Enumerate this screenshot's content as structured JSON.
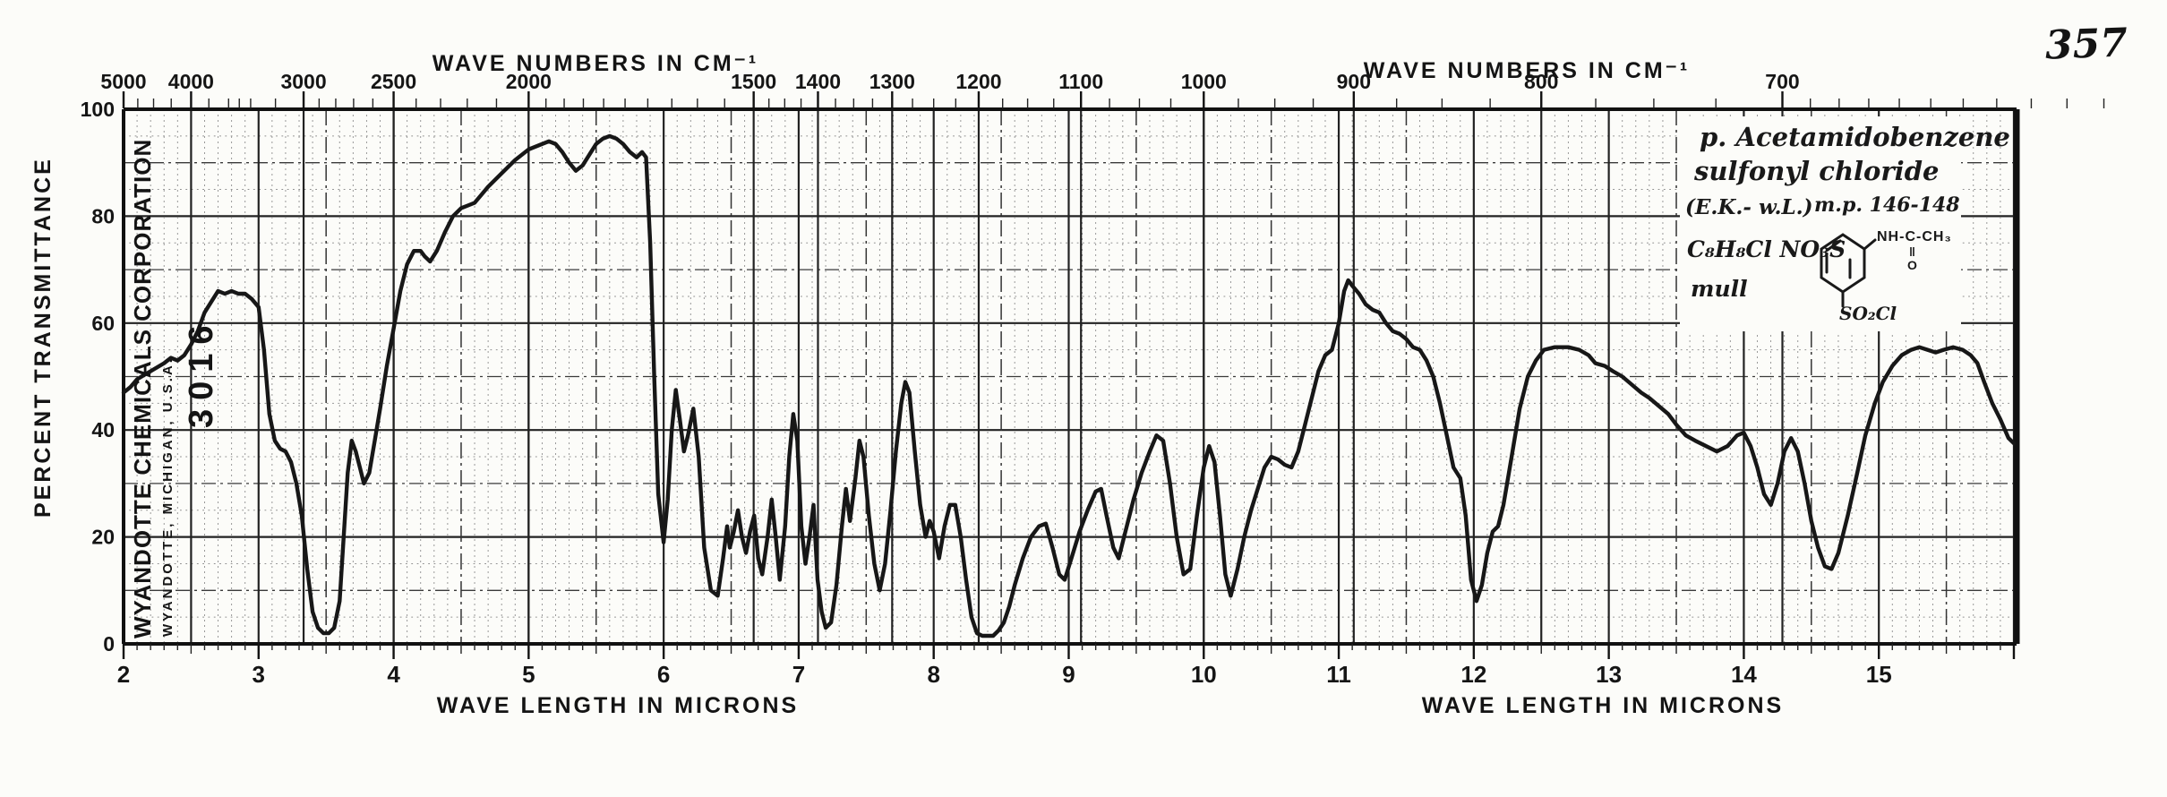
{
  "page": {
    "number": "357"
  },
  "top_axis": {
    "title_left": "WAVE NUMBERS IN CM⁻¹",
    "title_right": "WAVE NUMBERS IN CM⁻¹"
  },
  "bottom_axis": {
    "title_left": "WAVE LENGTH IN MICRONS",
    "title_right": "WAVE LENGTH IN MICRONS"
  },
  "left_axis": {
    "title": "PERCENT TRANSMITTANCE"
  },
  "stamps": {
    "company": "WYANDOTTE CHEMICALS CORPORATION",
    "city": "WYANDOTTE, MICHIGAN, U.S.A.",
    "number": "3016"
  },
  "annotation": {
    "line1": "p. Acetamidobenzene",
    "line2": "sulfonyl chloride",
    "source": "(E.K.- w.L.)",
    "melting_point": "m.p. 146-148",
    "formula": "C₈H₈Cl NO₃S",
    "preparation": "mull",
    "structure": {
      "amide": "NH-C-CH₃",
      "double_bond": "‖",
      "oxygen": "O",
      "sulfonyl": "SO₂Cl"
    }
  },
  "chart_data": {
    "type": "line",
    "xlabel": "WAVE LENGTH IN MICRONS",
    "x2label": "WAVE NUMBERS IN CM⁻¹",
    "ylabel": "PERCENT TRANSMITTANCE",
    "xlim": [
      2,
      16.02
    ],
    "ylim": [
      0,
      100
    ],
    "grid": true,
    "x_ticks_microns": [
      2,
      3,
      4,
      5,
      6,
      7,
      8,
      9,
      10,
      11,
      12,
      13,
      14,
      15
    ],
    "y_ticks": [
      100,
      80,
      60,
      40,
      20,
      0
    ],
    "wavenumber_ticks_labeled": [
      5000,
      4000,
      3000,
      2500,
      2000,
      1500,
      1400,
      1300,
      1200,
      1100,
      1000,
      900,
      800,
      700
    ],
    "wavenumber_ticks_minor": [
      4750,
      4500,
      4250,
      3800,
      3600,
      3500,
      3400,
      3200,
      2900,
      2800,
      2700,
      2600,
      2400,
      2300,
      2200,
      2100,
      1950,
      1900,
      1850,
      1800,
      1750,
      1700,
      1650,
      1600,
      1550,
      1475,
      1450,
      1425,
      1375,
      1350,
      1325,
      1275,
      1250,
      1225,
      1175,
      1150,
      1125,
      1075,
      1050,
      1025,
      975,
      950,
      925,
      875,
      850,
      825,
      775,
      750,
      725,
      690,
      680,
      670,
      660,
      650,
      640,
      630,
      620,
      610,
      600
    ],
    "series": [
      {
        "name": "percent transmittance",
        "points": [
          [
            2.0,
            47
          ],
          [
            2.05,
            48
          ],
          [
            2.1,
            49.5
          ],
          [
            2.2,
            51
          ],
          [
            2.3,
            52.5
          ],
          [
            2.35,
            53.5
          ],
          [
            2.4,
            53
          ],
          [
            2.45,
            54
          ],
          [
            2.5,
            56
          ],
          [
            2.55,
            58.5
          ],
          [
            2.6,
            62
          ],
          [
            2.65,
            64
          ],
          [
            2.7,
            66
          ],
          [
            2.75,
            65.5
          ],
          [
            2.8,
            66
          ],
          [
            2.85,
            65.5
          ],
          [
            2.9,
            65.5
          ],
          [
            2.95,
            64.5
          ],
          [
            3.0,
            63
          ],
          [
            3.04,
            55
          ],
          [
            3.08,
            43
          ],
          [
            3.12,
            38
          ],
          [
            3.16,
            36.5
          ],
          [
            3.2,
            36
          ],
          [
            3.24,
            34
          ],
          [
            3.28,
            30
          ],
          [
            3.32,
            24
          ],
          [
            3.36,
            14
          ],
          [
            3.4,
            6
          ],
          [
            3.44,
            3
          ],
          [
            3.48,
            2
          ],
          [
            3.52,
            2
          ],
          [
            3.56,
            3
          ],
          [
            3.6,
            8
          ],
          [
            3.63,
            20
          ],
          [
            3.66,
            32
          ],
          [
            3.69,
            38
          ],
          [
            3.72,
            36
          ],
          [
            3.75,
            33
          ],
          [
            3.78,
            30
          ],
          [
            3.82,
            32
          ],
          [
            3.86,
            38
          ],
          [
            3.9,
            44
          ],
          [
            3.95,
            52
          ],
          [
            4.0,
            59
          ],
          [
            4.05,
            66
          ],
          [
            4.1,
            71
          ],
          [
            4.15,
            73.5
          ],
          [
            4.2,
            73.5
          ],
          [
            4.23,
            72.5
          ],
          [
            4.27,
            71.5
          ],
          [
            4.32,
            73.5
          ],
          [
            4.38,
            77
          ],
          [
            4.44,
            80
          ],
          [
            4.5,
            81.5
          ],
          [
            4.55,
            82
          ],
          [
            4.6,
            82.5
          ],
          [
            4.65,
            84
          ],
          [
            4.7,
            85.5
          ],
          [
            4.8,
            88
          ],
          [
            4.9,
            90.5
          ],
          [
            5.0,
            92.5
          ],
          [
            5.05,
            93
          ],
          [
            5.1,
            93.5
          ],
          [
            5.15,
            94
          ],
          [
            5.2,
            93.5
          ],
          [
            5.25,
            92
          ],
          [
            5.3,
            90
          ],
          [
            5.35,
            88.5
          ],
          [
            5.4,
            89.5
          ],
          [
            5.45,
            91.5
          ],
          [
            5.5,
            93.5
          ],
          [
            5.55,
            94.5
          ],
          [
            5.6,
            95
          ],
          [
            5.65,
            94.5
          ],
          [
            5.7,
            93.5
          ],
          [
            5.75,
            92
          ],
          [
            5.8,
            91
          ],
          [
            5.84,
            92
          ],
          [
            5.87,
            91
          ],
          [
            5.9,
            75
          ],
          [
            5.93,
            50
          ],
          [
            5.96,
            28
          ],
          [
            6.0,
            19
          ],
          [
            6.03,
            27
          ],
          [
            6.06,
            40
          ],
          [
            6.09,
            47.5
          ],
          [
            6.12,
            42
          ],
          [
            6.15,
            36
          ],
          [
            6.18,
            39
          ],
          [
            6.22,
            44
          ],
          [
            6.26,
            35
          ],
          [
            6.3,
            18
          ],
          [
            6.35,
            10
          ],
          [
            6.4,
            9
          ],
          [
            6.44,
            16
          ],
          [
            6.47,
            22
          ],
          [
            6.49,
            18
          ],
          [
            6.52,
            21
          ],
          [
            6.55,
            25
          ],
          [
            6.58,
            20
          ],
          [
            6.61,
            17
          ],
          [
            6.64,
            21
          ],
          [
            6.67,
            24
          ],
          [
            6.7,
            16
          ],
          [
            6.73,
            13
          ],
          [
            6.77,
            20
          ],
          [
            6.8,
            27
          ],
          [
            6.83,
            20
          ],
          [
            6.86,
            12
          ],
          [
            6.9,
            22
          ],
          [
            6.93,
            35
          ],
          [
            6.96,
            43
          ],
          [
            6.99,
            38
          ],
          [
            7.02,
            22
          ],
          [
            7.05,
            15
          ],
          [
            7.08,
            20
          ],
          [
            7.11,
            26
          ],
          [
            7.14,
            12
          ],
          [
            7.17,
            6
          ],
          [
            7.2,
            3
          ],
          [
            7.24,
            4
          ],
          [
            7.28,
            11
          ],
          [
            7.32,
            22
          ],
          [
            7.35,
            29
          ],
          [
            7.38,
            23
          ],
          [
            7.42,
            31
          ],
          [
            7.45,
            38
          ],
          [
            7.48,
            35
          ],
          [
            7.52,
            24
          ],
          [
            7.56,
            15
          ],
          [
            7.6,
            10
          ],
          [
            7.64,
            15
          ],
          [
            7.68,
            25
          ],
          [
            7.72,
            36
          ],
          [
            7.76,
            45
          ],
          [
            7.79,
            49
          ],
          [
            7.82,
            47
          ],
          [
            7.86,
            36
          ],
          [
            7.9,
            26
          ],
          [
            7.94,
            20
          ],
          [
            7.97,
            23
          ],
          [
            8.0,
            21
          ],
          [
            8.04,
            16
          ],
          [
            8.08,
            22
          ],
          [
            8.12,
            26
          ],
          [
            8.16,
            26
          ],
          [
            8.2,
            20
          ],
          [
            8.24,
            12
          ],
          [
            8.28,
            5
          ],
          [
            8.32,
            2
          ],
          [
            8.36,
            1.5
          ],
          [
            8.4,
            1.5
          ],
          [
            8.44,
            1.5
          ],
          [
            8.48,
            2.5
          ],
          [
            8.52,
            4
          ],
          [
            8.56,
            7
          ],
          [
            8.6,
            11
          ],
          [
            8.66,
            16
          ],
          [
            8.72,
            20
          ],
          [
            8.78,
            22
          ],
          [
            8.83,
            22.5
          ],
          [
            8.88,
            18
          ],
          [
            8.93,
            13
          ],
          [
            8.97,
            12
          ],
          [
            9.02,
            16
          ],
          [
            9.08,
            21
          ],
          [
            9.14,
            25
          ],
          [
            9.2,
            28.5
          ],
          [
            9.24,
            29
          ],
          [
            9.28,
            24
          ],
          [
            9.33,
            18
          ],
          [
            9.37,
            16
          ],
          [
            9.42,
            21
          ],
          [
            9.48,
            27
          ],
          [
            9.54,
            32
          ],
          [
            9.6,
            36
          ],
          [
            9.65,
            39
          ],
          [
            9.7,
            38
          ],
          [
            9.75,
            30
          ],
          [
            9.8,
            20
          ],
          [
            9.85,
            13
          ],
          [
            9.9,
            14
          ],
          [
            9.95,
            24
          ],
          [
            10.0,
            33
          ],
          [
            10.04,
            37
          ],
          [
            10.08,
            34
          ],
          [
            10.12,
            24
          ],
          [
            10.16,
            13
          ],
          [
            10.2,
            9
          ],
          [
            10.25,
            14
          ],
          [
            10.3,
            20
          ],
          [
            10.35,
            25
          ],
          [
            10.4,
            29
          ],
          [
            10.45,
            33
          ],
          [
            10.5,
            35
          ],
          [
            10.55,
            34.5
          ],
          [
            10.6,
            33.5
          ],
          [
            10.65,
            33
          ],
          [
            10.7,
            36
          ],
          [
            10.75,
            41
          ],
          [
            10.8,
            46
          ],
          [
            10.85,
            51
          ],
          [
            10.9,
            54
          ],
          [
            10.95,
            55
          ],
          [
            11.0,
            60
          ],
          [
            11.04,
            66
          ],
          [
            11.07,
            68
          ],
          [
            11.1,
            67
          ],
          [
            11.15,
            65.5
          ],
          [
            11.2,
            63.5
          ],
          [
            11.25,
            62.5
          ],
          [
            11.3,
            62
          ],
          [
            11.35,
            60
          ],
          [
            11.4,
            58.5
          ],
          [
            11.45,
            58
          ],
          [
            11.5,
            57
          ],
          [
            11.55,
            55.5
          ],
          [
            11.6,
            55
          ],
          [
            11.65,
            53
          ],
          [
            11.7,
            50
          ],
          [
            11.75,
            45
          ],
          [
            11.8,
            39
          ],
          [
            11.85,
            33
          ],
          [
            11.9,
            31
          ],
          [
            11.94,
            24
          ],
          [
            11.98,
            12
          ],
          [
            12.02,
            8
          ],
          [
            12.06,
            11
          ],
          [
            12.1,
            17
          ],
          [
            12.14,
            21
          ],
          [
            12.18,
            22
          ],
          [
            12.22,
            26
          ],
          [
            12.28,
            35
          ],
          [
            12.34,
            44
          ],
          [
            12.4,
            50
          ],
          [
            12.46,
            53
          ],
          [
            12.52,
            55
          ],
          [
            12.6,
            55.5
          ],
          [
            12.7,
            55.5
          ],
          [
            12.78,
            55
          ],
          [
            12.85,
            54
          ],
          [
            12.9,
            52.5
          ],
          [
            12.97,
            52
          ],
          [
            13.03,
            51
          ],
          [
            13.1,
            50
          ],
          [
            13.17,
            48.5
          ],
          [
            13.24,
            47
          ],
          [
            13.3,
            46
          ],
          [
            13.37,
            44.5
          ],
          [
            13.44,
            43
          ],
          [
            13.5,
            41
          ],
          [
            13.57,
            39
          ],
          [
            13.64,
            38
          ],
          [
            13.72,
            37
          ],
          [
            13.8,
            36
          ],
          [
            13.88,
            37
          ],
          [
            13.95,
            39
          ],
          [
            14.0,
            39.5
          ],
          [
            14.05,
            37
          ],
          [
            14.1,
            33
          ],
          [
            14.15,
            28
          ],
          [
            14.2,
            26
          ],
          [
            14.25,
            30
          ],
          [
            14.3,
            36
          ],
          [
            14.35,
            38.5
          ],
          [
            14.4,
            36
          ],
          [
            14.45,
            30
          ],
          [
            14.5,
            23
          ],
          [
            14.55,
            18
          ],
          [
            14.6,
            14.5
          ],
          [
            14.65,
            14
          ],
          [
            14.7,
            17
          ],
          [
            14.77,
            24
          ],
          [
            14.84,
            32
          ],
          [
            14.9,
            39
          ],
          [
            14.97,
            45
          ],
          [
            15.03,
            49
          ],
          [
            15.1,
            52
          ],
          [
            15.17,
            54
          ],
          [
            15.24,
            55
          ],
          [
            15.3,
            55.5
          ],
          [
            15.36,
            55
          ],
          [
            15.42,
            54.5
          ],
          [
            15.48,
            55
          ],
          [
            15.55,
            55.5
          ],
          [
            15.62,
            55
          ],
          [
            15.68,
            54
          ],
          [
            15.73,
            52.5
          ],
          [
            15.78,
            49
          ],
          [
            15.84,
            45
          ],
          [
            15.9,
            42
          ],
          [
            15.96,
            38.5
          ],
          [
            16.0,
            37.5
          ]
        ]
      }
    ]
  }
}
